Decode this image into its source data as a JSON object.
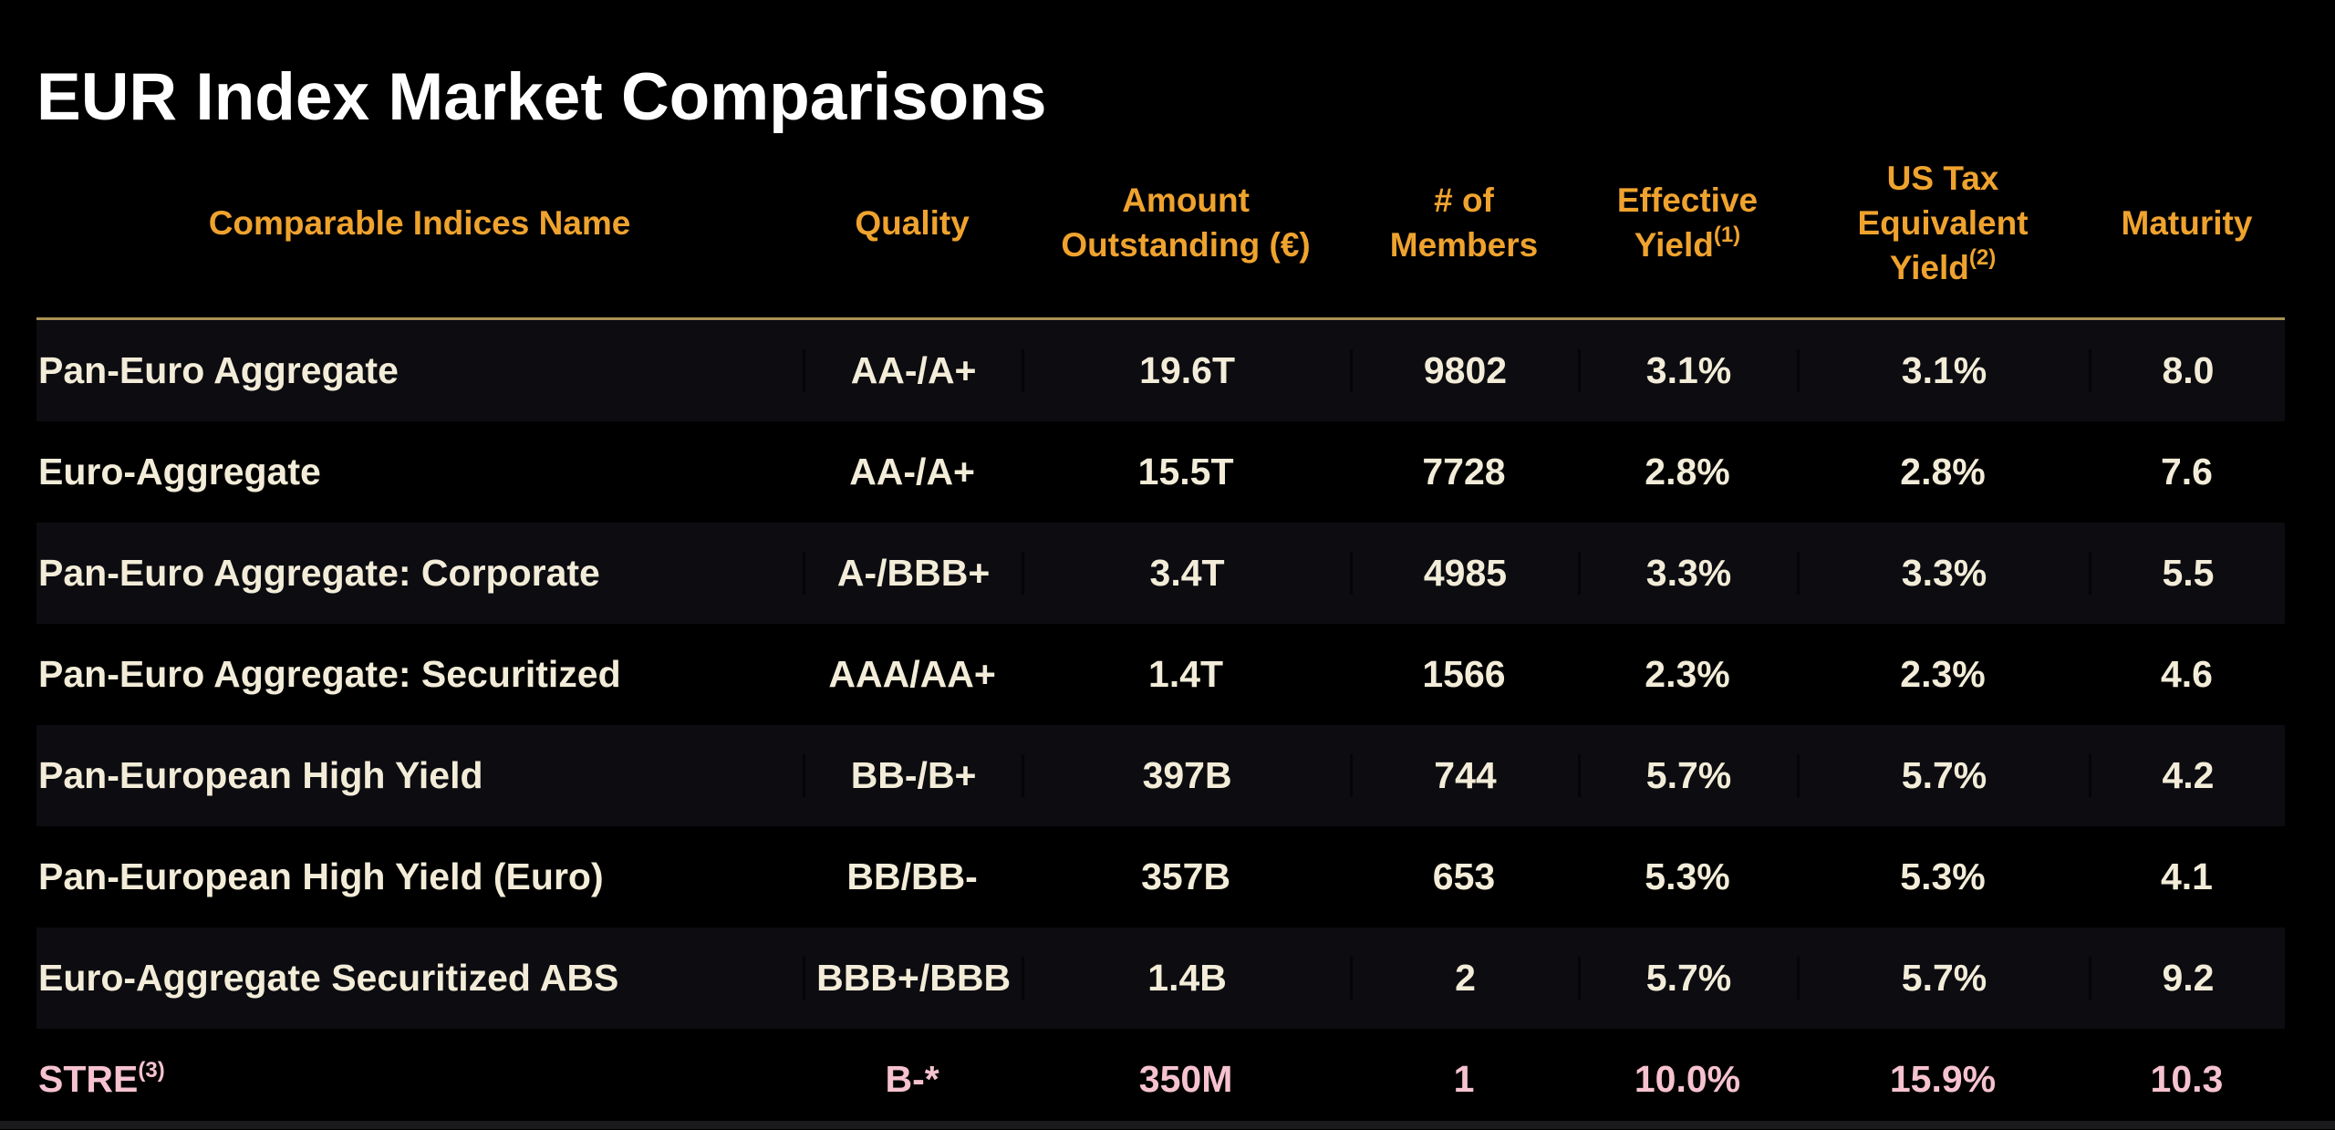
{
  "page": {
    "title": "EUR Index Market Comparisons"
  },
  "colors": {
    "background": "#000000",
    "title_text": "#FFFFFF",
    "header_text": "#EFA32E",
    "header_divider_line": "#AB9254",
    "row_text": "#F2ECD8",
    "row_alt_background": "#0C0C11",
    "highlight_row_text": "#F6C2CF"
  },
  "table": {
    "columns": [
      {
        "key": "name",
        "class": "c-name",
        "label": "Comparable Indices Name",
        "superscript": ""
      },
      {
        "key": "quality",
        "class": "c-quality",
        "label": "Quality",
        "superscript": ""
      },
      {
        "key": "amount",
        "class": "c-amount",
        "label": "Amount Outstanding (€)",
        "superscript": ""
      },
      {
        "key": "members",
        "class": "c-members",
        "label": "# of Members",
        "superscript": ""
      },
      {
        "key": "eff",
        "class": "c-eff",
        "label": "Effective Yield",
        "superscript": "(1)"
      },
      {
        "key": "tax",
        "class": "c-tax",
        "label": "US Tax Equivalent Yield",
        "superscript": "(2)"
      },
      {
        "key": "maturity",
        "class": "c-maturity",
        "label": "Maturity",
        "superscript": ""
      }
    ],
    "rows": [
      {
        "name": "Pan-Euro Aggregate",
        "name_superscript": "",
        "quality": "AA-/A+",
        "amount": "19.6T",
        "members": "9802",
        "eff": "3.1%",
        "tax": "3.1%",
        "maturity": "8.0",
        "alt": true,
        "highlight": false
      },
      {
        "name": "Euro-Aggregate",
        "name_superscript": "",
        "quality": "AA-/A+",
        "amount": "15.5T",
        "members": "7728",
        "eff": "2.8%",
        "tax": "2.8%",
        "maturity": "7.6",
        "alt": false,
        "highlight": false
      },
      {
        "name": "Pan-Euro Aggregate: Corporate",
        "name_superscript": "",
        "quality": "A-/BBB+",
        "amount": "3.4T",
        "members": "4985",
        "eff": "3.3%",
        "tax": "3.3%",
        "maturity": "5.5",
        "alt": true,
        "highlight": false
      },
      {
        "name": "Pan-Euro Aggregate: Securitized",
        "name_superscript": "",
        "quality": "AAA/AA+",
        "amount": "1.4T",
        "members": "1566",
        "eff": "2.3%",
        "tax": "2.3%",
        "maturity": "4.6",
        "alt": false,
        "highlight": false
      },
      {
        "name": "Pan-European High Yield",
        "name_superscript": "",
        "quality": "BB-/B+",
        "amount": "397B",
        "members": "744",
        "eff": "5.7%",
        "tax": "5.7%",
        "maturity": "4.2",
        "alt": true,
        "highlight": false
      },
      {
        "name": "Pan-European High Yield (Euro)",
        "name_superscript": "",
        "quality": "BB/BB-",
        "amount": "357B",
        "members": "653",
        "eff": "5.3%",
        "tax": "5.3%",
        "maturity": "4.1",
        "alt": false,
        "highlight": false
      },
      {
        "name": "Euro-Aggregate Securitized ABS",
        "name_superscript": "",
        "quality": "BBB+/BBB",
        "amount": "1.4B",
        "members": "2",
        "eff": "5.7%",
        "tax": "5.7%",
        "maturity": "9.2",
        "alt": true,
        "highlight": false
      },
      {
        "name": "STRE",
        "name_superscript": "(3)",
        "quality": "B-*",
        "amount": "350M",
        "members": "1",
        "eff": "10.0%",
        "tax": "15.9%",
        "maturity": "10.3",
        "alt": false,
        "highlight": true
      }
    ]
  }
}
